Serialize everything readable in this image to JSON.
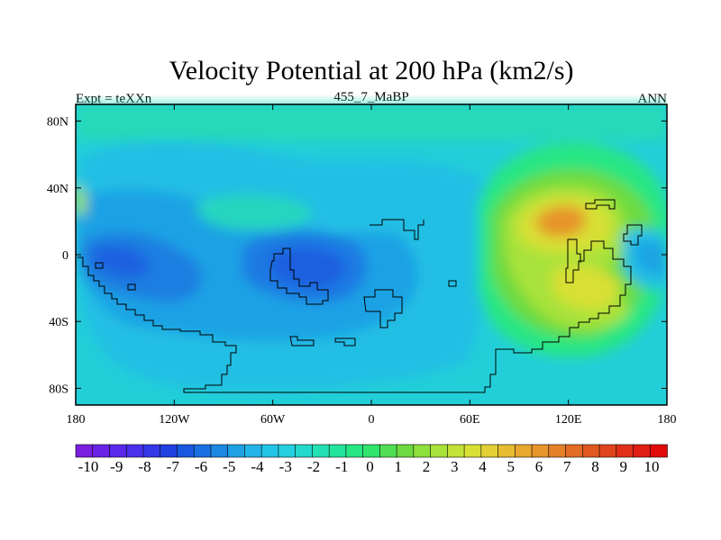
{
  "chart_data": {
    "type": "heatmap",
    "title": "Velocity Potential at 200 hPa (km2/s)",
    "left_label": "Expt = teXXn",
    "center_label": "455_7_MaBP",
    "right_label": "ANN",
    "projection": "cylindrical equidistant",
    "xlim": [
      -180,
      180
    ],
    "ylim": [
      -90,
      90
    ],
    "x_ticks": [
      {
        "value": -180,
        "label": "180"
      },
      {
        "value": -120,
        "label": "120W"
      },
      {
        "value": -60,
        "label": "60W"
      },
      {
        "value": 0,
        "label": "0"
      },
      {
        "value": 60,
        "label": "60E"
      },
      {
        "value": 120,
        "label": "120E"
      },
      {
        "value": 180,
        "label": "180"
      }
    ],
    "y_ticks": [
      {
        "value": 80,
        "label": "80N"
      },
      {
        "value": 40,
        "label": "40N"
      },
      {
        "value": 0,
        "label": "0"
      },
      {
        "value": -40,
        "label": "40S"
      },
      {
        "value": -80,
        "label": "80S"
      }
    ],
    "colorbar": {
      "levels": [
        "-10",
        "-9",
        "-8",
        "-7",
        "-6",
        "-5",
        "-4",
        "-3",
        "-2",
        "-1",
        "0",
        "1",
        "2",
        "3",
        "4",
        "5",
        "6",
        "7",
        "8",
        "9",
        "10"
      ],
      "colors": [
        "#7a1ee0",
        "#6a22e6",
        "#5a28ea",
        "#4a30ea",
        "#3438e6",
        "#2040e0",
        "#1a58e0",
        "#1a70e0",
        "#1c88e2",
        "#20a0e4",
        "#22b4e6",
        "#24c4e6",
        "#26d0e0",
        "#24d8cc",
        "#22e0b4",
        "#22e49c",
        "#26e684",
        "#30e46c",
        "#50de54",
        "#6cda40",
        "#8ee03c",
        "#a8e23a",
        "#c2e238",
        "#d8e036",
        "#e4d034",
        "#e8bc30",
        "#e8a82e",
        "#e6942c",
        "#e48028",
        "#e26c24",
        "#e05820",
        "#e0441c",
        "#e03018",
        "#e01e14",
        "#e00c0c"
      ]
    },
    "extrema": [
      {
        "kind": "max",
        "lon": 125,
        "lat": 22,
        "value": 6.5
      },
      {
        "kind": "max",
        "lon": 130,
        "lat": -20,
        "value": 5
      },
      {
        "kind": "min",
        "lon": -42,
        "lat": -5,
        "value": -4.6
      },
      {
        "kind": "min",
        "lon": -150,
        "lat": -10,
        "value": -4.2
      },
      {
        "kind": "min",
        "lon": 178,
        "lat": 5,
        "value": -3
      }
    ]
  }
}
